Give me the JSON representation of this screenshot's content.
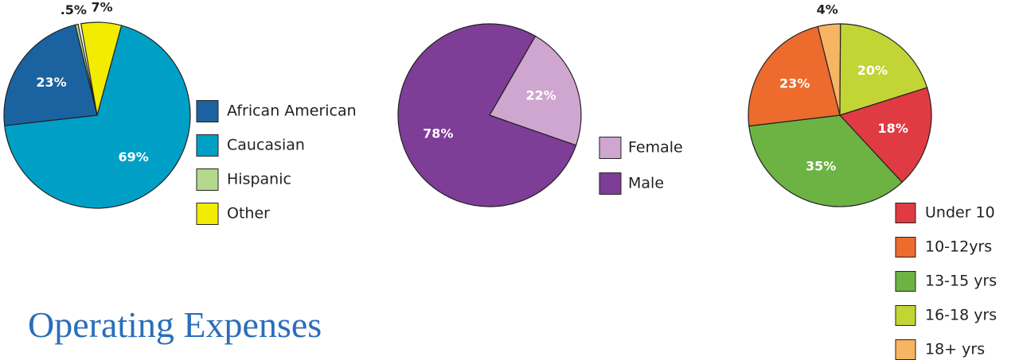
{
  "heading": "Operating Expenses",
  "chart_data": [
    {
      "type": "pie",
      "categories": [
        "African American",
        "Caucasian",
        "Hispanic",
        "Other"
      ],
      "values": [
        23,
        69,
        0.5,
        7
      ],
      "value_labels": [
        "23%",
        "69%",
        ".5%",
        "7%"
      ],
      "colors": [
        "#1a63a0",
        "#00a0c6",
        "#b5d98c",
        "#f2ec00"
      ]
    },
    {
      "type": "pie",
      "categories": [
        "Female",
        "Male"
      ],
      "values": [
        22,
        78
      ],
      "value_labels": [
        "22%",
        "78%"
      ],
      "colors": [
        "#cfa6cf",
        "#7e3d97"
      ]
    },
    {
      "type": "pie",
      "categories": [
        "Under 10",
        "10-12yrs",
        "13-15 yrs",
        "16-18 yrs",
        "18+ yrs"
      ],
      "values": [
        18,
        23,
        35,
        20,
        4
      ],
      "value_labels": [
        "18%",
        "23%",
        "35%",
        "20%",
        "4%"
      ],
      "colors": [
        "#e03a43",
        "#ec6b2d",
        "#6db344",
        "#c2d535",
        "#f7b462"
      ]
    }
  ]
}
